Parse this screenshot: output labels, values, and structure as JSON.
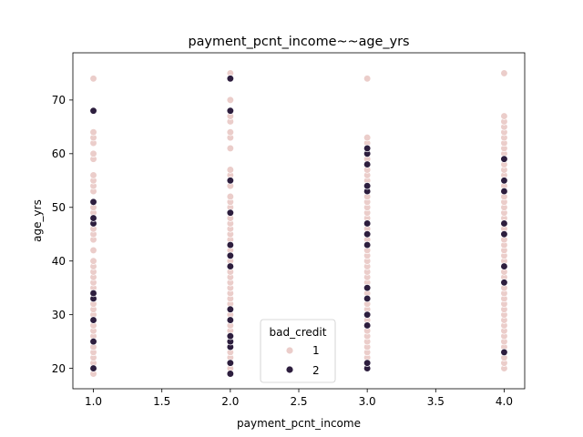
{
  "chart_data": {
    "type": "scatter",
    "title": "payment_pcnt_income~~age_yrs",
    "xlabel": "payment_pcnt_income",
    "ylabel": "age_yrs",
    "xlim": [
      0.85,
      4.15
    ],
    "ylim": [
      16.2,
      78.8
    ],
    "xticks": [
      1.0,
      1.5,
      2.0,
      2.5,
      3.0,
      3.5,
      4.0
    ],
    "xtick_labels": [
      "1.0",
      "1.5",
      "2.0",
      "2.5",
      "3.0",
      "3.5",
      "4.0"
    ],
    "yticks": [
      20,
      30,
      40,
      50,
      60,
      70
    ],
    "ytick_labels": [
      "20",
      "30",
      "40",
      "50",
      "60",
      "70"
    ],
    "grid": false,
    "legend": {
      "title": "bad_credit",
      "placement": "lower-center"
    },
    "series": [
      {
        "name": "1",
        "color": "#ebcdca",
        "points": [
          [
            1,
            19
          ],
          [
            1,
            20
          ],
          [
            1,
            21
          ],
          [
            1,
            22
          ],
          [
            1,
            23
          ],
          [
            1,
            24
          ],
          [
            1,
            26
          ],
          [
            1,
            27
          ],
          [
            1,
            28
          ],
          [
            1,
            29
          ],
          [
            1,
            30
          ],
          [
            1,
            31
          ],
          [
            1,
            32
          ],
          [
            1,
            34
          ],
          [
            1,
            35
          ],
          [
            1,
            36
          ],
          [
            1,
            37
          ],
          [
            1,
            38
          ],
          [
            1,
            39
          ],
          [
            1,
            40
          ],
          [
            1,
            42
          ],
          [
            1,
            44
          ],
          [
            1,
            45
          ],
          [
            1,
            46
          ],
          [
            1,
            47
          ],
          [
            1,
            49
          ],
          [
            1,
            50
          ],
          [
            1,
            53
          ],
          [
            1,
            54
          ],
          [
            1,
            55
          ],
          [
            1,
            56
          ],
          [
            1,
            59
          ],
          [
            1,
            60
          ],
          [
            1,
            62
          ],
          [
            1,
            63
          ],
          [
            1,
            64
          ],
          [
            1,
            74
          ],
          [
            2,
            19
          ],
          [
            2,
            20
          ],
          [
            2,
            21
          ],
          [
            2,
            22
          ],
          [
            2,
            23
          ],
          [
            2,
            24
          ],
          [
            2,
            25
          ],
          [
            2,
            26
          ],
          [
            2,
            27
          ],
          [
            2,
            28
          ],
          [
            2,
            29
          ],
          [
            2,
            30
          ],
          [
            2,
            31
          ],
          [
            2,
            32
          ],
          [
            2,
            33
          ],
          [
            2,
            34
          ],
          [
            2,
            35
          ],
          [
            2,
            36
          ],
          [
            2,
            37
          ],
          [
            2,
            38
          ],
          [
            2,
            40
          ],
          [
            2,
            41
          ],
          [
            2,
            42
          ],
          [
            2,
            44
          ],
          [
            2,
            45
          ],
          [
            2,
            46
          ],
          [
            2,
            47
          ],
          [
            2,
            48
          ],
          [
            2,
            50
          ],
          [
            2,
            51
          ],
          [
            2,
            52
          ],
          [
            2,
            54
          ],
          [
            2,
            56
          ],
          [
            2,
            57
          ],
          [
            2,
            61
          ],
          [
            2,
            63
          ],
          [
            2,
            64
          ],
          [
            2,
            66
          ],
          [
            2,
            67
          ],
          [
            2,
            68
          ],
          [
            2,
            70
          ],
          [
            2,
            75
          ],
          [
            3,
            20
          ],
          [
            3,
            21
          ],
          [
            3,
            22
          ],
          [
            3,
            23
          ],
          [
            3,
            24
          ],
          [
            3,
            25
          ],
          [
            3,
            26
          ],
          [
            3,
            27
          ],
          [
            3,
            29
          ],
          [
            3,
            30
          ],
          [
            3,
            31
          ],
          [
            3,
            32
          ],
          [
            3,
            34
          ],
          [
            3,
            36
          ],
          [
            3,
            37
          ],
          [
            3,
            38
          ],
          [
            3,
            39
          ],
          [
            3,
            40
          ],
          [
            3,
            41
          ],
          [
            3,
            42
          ],
          [
            3,
            44
          ],
          [
            3,
            46
          ],
          [
            3,
            48
          ],
          [
            3,
            49
          ],
          [
            3,
            50
          ],
          [
            3,
            51
          ],
          [
            3,
            52
          ],
          [
            3,
            55
          ],
          [
            3,
            56
          ],
          [
            3,
            57
          ],
          [
            3,
            59
          ],
          [
            3,
            62
          ],
          [
            3,
            63
          ],
          [
            3,
            74
          ],
          [
            4,
            20
          ],
          [
            4,
            21
          ],
          [
            4,
            22
          ],
          [
            4,
            24
          ],
          [
            4,
            25
          ],
          [
            4,
            26
          ],
          [
            4,
            27
          ],
          [
            4,
            28
          ],
          [
            4,
            29
          ],
          [
            4,
            30
          ],
          [
            4,
            31
          ],
          [
            4,
            32
          ],
          [
            4,
            33
          ],
          [
            4,
            34
          ],
          [
            4,
            35
          ],
          [
            4,
            37
          ],
          [
            4,
            38
          ],
          [
            4,
            40
          ],
          [
            4,
            41
          ],
          [
            4,
            42
          ],
          [
            4,
            43
          ],
          [
            4,
            44
          ],
          [
            4,
            46
          ],
          [
            4,
            48
          ],
          [
            4,
            49
          ],
          [
            4,
            50
          ],
          [
            4,
            51
          ],
          [
            4,
            52
          ],
          [
            4,
            54
          ],
          [
            4,
            56
          ],
          [
            4,
            57
          ],
          [
            4,
            58
          ],
          [
            4,
            60
          ],
          [
            4,
            61
          ],
          [
            4,
            62
          ],
          [
            4,
            63
          ],
          [
            4,
            64
          ],
          [
            4,
            65
          ],
          [
            4,
            66
          ],
          [
            4,
            67
          ],
          [
            4,
            75
          ]
        ]
      },
      {
        "name": "2",
        "color": "#2d1e3e",
        "points": [
          [
            1,
            20
          ],
          [
            1,
            25
          ],
          [
            1,
            29
          ],
          [
            1,
            33
          ],
          [
            1,
            34
          ],
          [
            1,
            47
          ],
          [
            1,
            48
          ],
          [
            1,
            51
          ],
          [
            1,
            68
          ],
          [
            2,
            19
          ],
          [
            2,
            21
          ],
          [
            2,
            24
          ],
          [
            2,
            25
          ],
          [
            2,
            26
          ],
          [
            2,
            29
          ],
          [
            2,
            31
          ],
          [
            2,
            39
          ],
          [
            2,
            41
          ],
          [
            2,
            43
          ],
          [
            2,
            49
          ],
          [
            2,
            55
          ],
          [
            2,
            68
          ],
          [
            2,
            74
          ],
          [
            3,
            20
          ],
          [
            3,
            21
          ],
          [
            3,
            28
          ],
          [
            3,
            30
          ],
          [
            3,
            33
          ],
          [
            3,
            35
          ],
          [
            3,
            43
          ],
          [
            3,
            45
          ],
          [
            3,
            47
          ],
          [
            3,
            53
          ],
          [
            3,
            54
          ],
          [
            3,
            58
          ],
          [
            3,
            60
          ],
          [
            3,
            61
          ],
          [
            4,
            23
          ],
          [
            4,
            36
          ],
          [
            4,
            39
          ],
          [
            4,
            45
          ],
          [
            4,
            47
          ],
          [
            4,
            53
          ],
          [
            4,
            55
          ],
          [
            4,
            59
          ]
        ]
      }
    ]
  }
}
